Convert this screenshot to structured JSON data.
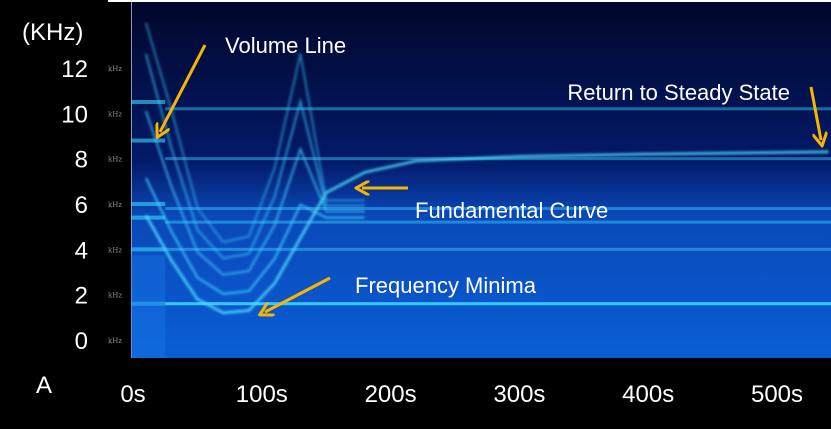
{
  "chart_data": {
    "type": "heatmap",
    "title": "",
    "panel_label": "A",
    "ylabel": "(KHz)",
    "xlabel": "",
    "y_ticks": [
      "0",
      "2",
      "4",
      "6",
      "8",
      "10",
      "12"
    ],
    "y_tick_values": [
      0,
      2,
      4,
      6,
      8,
      10,
      12
    ],
    "y_minor_tick_label": "kHz",
    "x_ticks": [
      "0s",
      "100s",
      "200s",
      "300s",
      "400s",
      "500s"
    ],
    "x_tick_values": [
      0,
      100,
      200,
      300,
      400,
      500
    ],
    "ylim": [
      -0.5,
      14
    ],
    "xlim": [
      0,
      540
    ],
    "steady_bands_khz": [
      1.6,
      4.0,
      5.2,
      5.8,
      8.0,
      10.2
    ],
    "pre_onset_bands_khz": [
      10.5,
      8.8,
      6.0,
      5.4,
      4.0,
      1.6
    ],
    "onset_time_s": 25,
    "fundamental_curve": {
      "time_s": [
        10,
        30,
        50,
        70,
        90,
        110,
        130,
        150,
        180,
        220,
        300,
        400,
        540
      ],
      "freq_khz": [
        5.5,
        3.5,
        1.8,
        1.2,
        1.3,
        2.5,
        4.5,
        6.5,
        7.4,
        7.9,
        8.1,
        8.2,
        8.3
      ]
    },
    "annotations": [
      {
        "text": "Volume Line",
        "points_to_s": 20,
        "points_to_khz": 9.0
      },
      {
        "text": "Return to Steady State",
        "points_to_s": 540,
        "points_to_khz": 8.3
      },
      {
        "text": "Fundamental Curve",
        "points_to_s": 180,
        "points_to_khz": 6.6
      },
      {
        "text": "Frequency Minima",
        "points_to_s": 100,
        "points_to_khz": 1.3
      }
    ],
    "colors": {
      "background": "#000000",
      "low": "#020a3a",
      "high": "#0a62dc",
      "band": "#38d8ff",
      "arrow": "#f7b500",
      "text": "#ffffff"
    }
  }
}
